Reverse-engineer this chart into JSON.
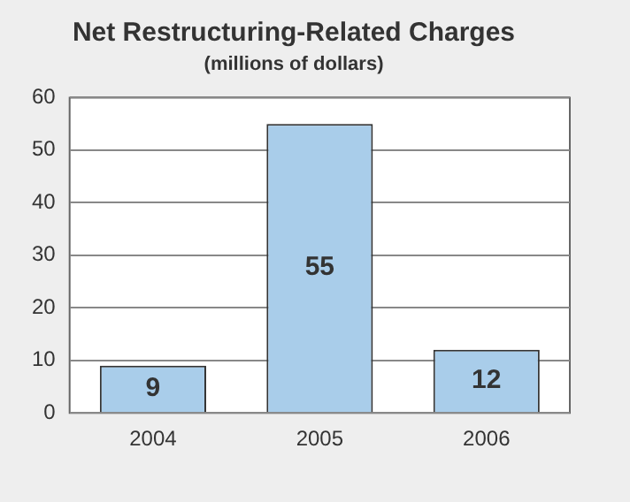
{
  "chart_data": {
    "type": "bar",
    "title": "Net Restructuring-Related Charges",
    "subtitle": "(millions of dollars)",
    "categories": [
      "2004",
      "2005",
      "2006"
    ],
    "values": [
      9,
      55,
      12
    ],
    "color": "#a9cdea",
    "ylim": [
      0,
      60
    ],
    "yticks": [
      0,
      10,
      20,
      30,
      40,
      50,
      60
    ],
    "grid": "y",
    "data_labels": true
  }
}
